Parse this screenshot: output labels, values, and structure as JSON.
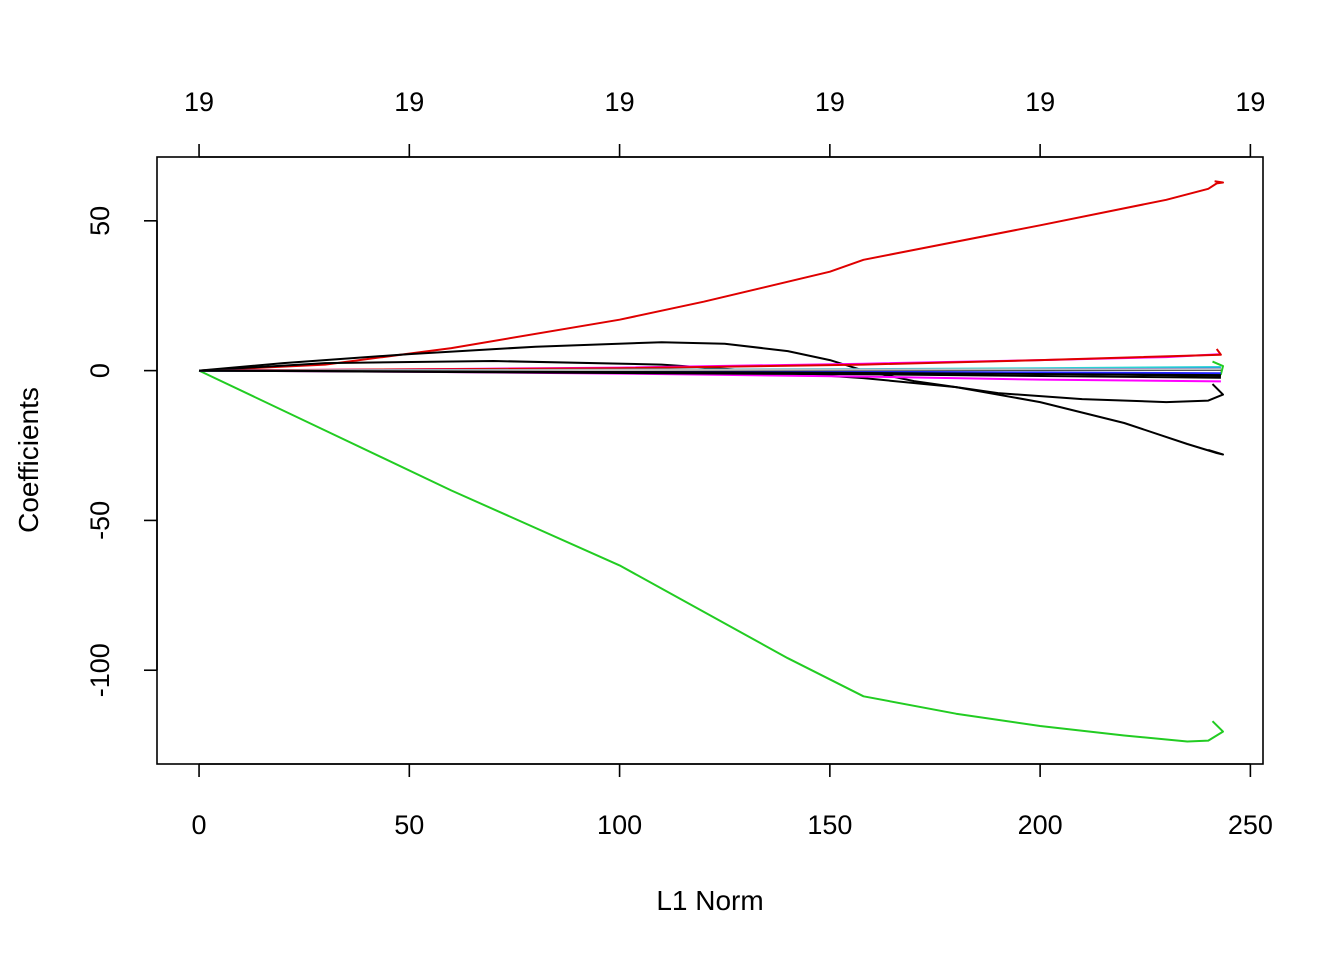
{
  "chart_data": {
    "type": "line",
    "title": "",
    "xlabel": "L1 Norm",
    "ylabel": "Coefficients",
    "xlim": [
      -10,
      253
    ],
    "ylim": [
      -131.3,
      71.3
    ],
    "x_ticks": [
      0,
      50,
      100,
      150,
      200,
      250
    ],
    "x_tick_labels": [
      "0",
      "50",
      "100",
      "150",
      "200",
      "250"
    ],
    "y_ticks": [
      50,
      0,
      -50,
      -100
    ],
    "y_tick_labels": [
      "50",
      "0",
      "-50",
      "-100"
    ],
    "top_ticks": [
      0,
      50,
      100,
      150,
      200,
      250
    ],
    "top_tick_labels": [
      "19",
      "19",
      "19",
      "19",
      "19",
      "19"
    ],
    "grid": false,
    "legend": "none",
    "series": [
      {
        "color": "#DF0000",
        "points": [
          [
            0,
            0
          ],
          [
            30,
            2
          ],
          [
            60,
            7.5
          ],
          [
            100,
            17
          ],
          [
            120,
            23
          ],
          [
            150,
            33
          ],
          [
            158,
            37
          ],
          [
            200,
            48.5
          ],
          [
            230,
            57
          ],
          [
            240,
            60.7
          ],
          [
            242,
            62.5
          ],
          [
            243.5,
            62.8
          ],
          [
            241.5,
            63.2
          ]
        ]
      },
      {
        "color": "#22CC22",
        "points": [
          [
            0,
            0
          ],
          [
            30,
            -20
          ],
          [
            60,
            -40
          ],
          [
            100,
            -65
          ],
          [
            140,
            -96
          ],
          [
            158,
            -108.7
          ],
          [
            180,
            -114.5
          ],
          [
            200,
            -118.6
          ],
          [
            220,
            -121.8
          ],
          [
            235,
            -123.8
          ],
          [
            240,
            -123.5
          ],
          [
            243.5,
            -120.5
          ],
          [
            241,
            -117
          ]
        ]
      },
      {
        "color": "#000000",
        "points": [
          [
            0,
            0
          ],
          [
            20,
            2.5
          ],
          [
            50,
            5.5
          ],
          [
            80,
            8
          ],
          [
            110,
            9.5
          ],
          [
            125,
            9
          ],
          [
            140,
            6.5
          ],
          [
            150,
            3.5
          ],
          [
            158,
            0
          ],
          [
            170,
            -3.5
          ],
          [
            190,
            -7.5
          ],
          [
            210,
            -9.5
          ],
          [
            230,
            -10.5
          ],
          [
            240,
            -10
          ],
          [
            243.5,
            -8
          ],
          [
            241,
            -4.5
          ]
        ]
      },
      {
        "color": "#000000",
        "points": [
          [
            0,
            0
          ],
          [
            30,
            2.5
          ],
          [
            70,
            3.2
          ],
          [
            110,
            2
          ],
          [
            158,
            -2.5
          ],
          [
            180,
            -5.5
          ],
          [
            200,
            -10.5
          ],
          [
            220,
            -17.5
          ],
          [
            235,
            -24.5
          ],
          [
            242,
            -27.5
          ],
          [
            243.5,
            -28
          ],
          [
            240,
            -26.5
          ]
        ]
      },
      {
        "color": "#000000",
        "points": [
          [
            0,
            0
          ],
          [
            100,
            0.4
          ],
          [
            158,
            -0.4
          ],
          [
            200,
            -1
          ],
          [
            243,
            -1.8
          ]
        ]
      },
      {
        "color": "#FF00FF",
        "points": [
          [
            0,
            0
          ],
          [
            50,
            0.4
          ],
          [
            100,
            1
          ],
          [
            158,
            2.3
          ],
          [
            200,
            3.5
          ],
          [
            230,
            4.5
          ],
          [
            243,
            5.5
          ]
        ]
      },
      {
        "color": "#FF00FF",
        "points": [
          [
            0,
            0
          ],
          [
            50,
            -0.4
          ],
          [
            100,
            -1
          ],
          [
            158,
            -2
          ],
          [
            200,
            -3
          ],
          [
            243,
            -3.6
          ]
        ]
      },
      {
        "color": "#DF0000",
        "points": [
          [
            0,
            0
          ],
          [
            100,
            0.8
          ],
          [
            158,
            2
          ],
          [
            200,
            3.5
          ],
          [
            243,
            5.3
          ],
          [
            242,
            7.2
          ]
        ]
      },
      {
        "color": "#22CC22",
        "points": [
          [
            0,
            0
          ],
          [
            100,
            -0.3
          ],
          [
            158,
            -0.5
          ],
          [
            200,
            -0.8
          ],
          [
            243,
            -1.2
          ],
          [
            243.5,
            1.5
          ],
          [
            241,
            3
          ]
        ]
      },
      {
        "color": "#2BD2D2",
        "points": [
          [
            0,
            0
          ],
          [
            100,
            0.3
          ],
          [
            158,
            0.5
          ],
          [
            200,
            0.8
          ],
          [
            243,
            1.2
          ]
        ]
      },
      {
        "color": "#2222FF",
        "points": [
          [
            0,
            0
          ],
          [
            100,
            0.15
          ],
          [
            158,
            0.3
          ],
          [
            200,
            0.4
          ],
          [
            243,
            0.6
          ]
        ]
      },
      {
        "color": "#2222FF",
        "points": [
          [
            0,
            0
          ],
          [
            100,
            -0.2
          ],
          [
            158,
            -0.4
          ],
          [
            200,
            -0.6
          ],
          [
            243,
            -0.9
          ]
        ]
      },
      {
        "color": "#000000",
        "points": [
          [
            0,
            0
          ],
          [
            100,
            0.1
          ],
          [
            200,
            0.2
          ],
          [
            243,
            0.3
          ]
        ]
      },
      {
        "color": "#BEBEBE",
        "points": [
          [
            0,
            0
          ],
          [
            100,
            0.2
          ],
          [
            200,
            0.4
          ],
          [
            243,
            0.5
          ]
        ]
      },
      {
        "color": "#000000",
        "points": [
          [
            0,
            0
          ],
          [
            100,
            -0.5
          ],
          [
            158,
            -0.8
          ],
          [
            243,
            -1.5
          ]
        ]
      },
      {
        "color": "#000000",
        "points": [
          [
            0,
            0
          ],
          [
            100,
            -0.8
          ],
          [
            158,
            -1.2
          ],
          [
            243,
            -2.4
          ]
        ]
      }
    ]
  }
}
